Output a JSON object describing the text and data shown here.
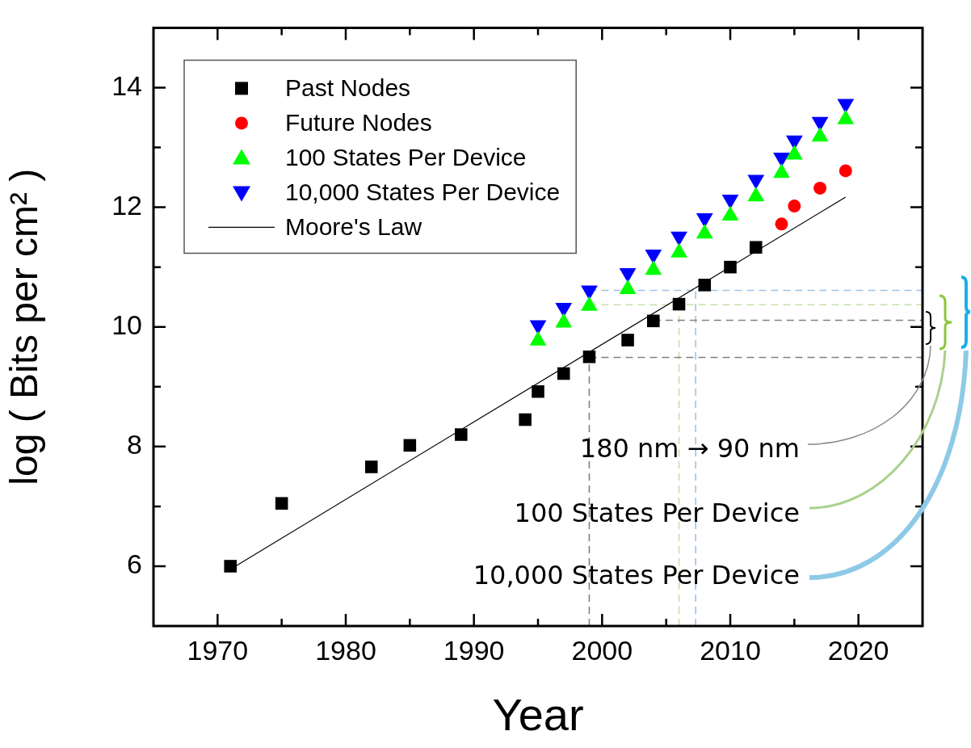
{
  "chart_data": {
    "type": "scatter",
    "xlabel": "Year",
    "ylabel": "log ( Bits per cm² )",
    "xlim": [
      1965,
      2025
    ],
    "ylim": [
      5,
      15
    ],
    "xticks": [
      1970,
      {
        "value": 1975,
        "label": null
      },
      1980,
      {
        "value": 1985,
        "label": null
      },
      1990,
      {
        "value": 1995,
        "label": null
      },
      2000,
      {
        "value": 2005,
        "label": null
      },
      2010,
      {
        "value": 2015,
        "label": null
      },
      2020
    ],
    "yticks": [
      6,
      {
        "value": 7,
        "label": null
      },
      8,
      {
        "value": 9,
        "label": null
      },
      10,
      {
        "value": 11,
        "label": null
      },
      12,
      {
        "value": 13,
        "label": null
      },
      14
    ],
    "grid": false,
    "legend": "top left",
    "annotations": [
      "180 nm → 90 nm",
      "100 States Per Device",
      "10,000 States Per Device"
    ],
    "series": [
      {
        "name": "Past Nodes",
        "type": "scatter",
        "marker": "square",
        "color": "#000000",
        "x": [
          1971,
          1975,
          1982,
          1985,
          1989,
          1994,
          1995,
          1997,
          1999,
          2002,
          2004,
          2006,
          2008,
          2010,
          2012
        ],
        "values": [
          6.0,
          7.05,
          7.66,
          8.02,
          8.2,
          8.45,
          8.92,
          9.22,
          9.5,
          9.78,
          10.1,
          10.38,
          10.7,
          11.0,
          11.33
        ]
      },
      {
        "name": "Future Nodes",
        "type": "scatter",
        "marker": "circle",
        "color": "#ff0000",
        "x": [
          2014,
          2015,
          2017,
          2019
        ],
        "values": [
          11.72,
          12.02,
          12.32,
          12.61
        ]
      },
      {
        "name": "100 States Per Device",
        "type": "scatter",
        "marker": "triangle",
        "color": "#00ff00",
        "x": [
          1995,
          1997,
          1999,
          2002,
          2004,
          2006,
          2008,
          2010,
          2012,
          2014,
          2015,
          2017,
          2019
        ],
        "values": [
          9.77,
          10.07,
          10.35,
          10.63,
          10.95,
          11.24,
          11.56,
          11.86,
          12.18,
          12.57,
          12.88,
          13.18,
          13.47
        ]
      },
      {
        "name": "10,000 States Per Device",
        "type": "scatter",
        "marker": "triangle-down",
        "color": "#0000ff",
        "x": [
          1995,
          1997,
          1999,
          2002,
          2004,
          2006,
          2008,
          2010,
          2012,
          2014,
          2015,
          2017,
          2019
        ],
        "values": [
          10.03,
          10.32,
          10.61,
          10.9,
          11.21,
          11.51,
          11.82,
          12.13,
          12.46,
          12.83,
          13.12,
          13.43,
          13.73
        ]
      },
      {
        "name": "Moore's Law",
        "type": "line",
        "marker": "none",
        "line_style": "solid",
        "color": "#000000",
        "x": [
          1971,
          2019
        ],
        "values": [
          5.95,
          12.17
        ]
      },
      {
        "type": "line",
        "marker": "none",
        "line_style": "dashed",
        "color": "#808080",
        "x": [
          1999,
          1999
        ],
        "values": [
          5,
          9.49
        ]
      },
      {
        "type": "line",
        "marker": "none",
        "line_style": "dashed",
        "color": "#808080",
        "x": [
          1999,
          2025
        ],
        "values": [
          9.49,
          9.49
        ]
      },
      {
        "type": "line",
        "marker": "none",
        "line_style": "dashed",
        "color": "#808080",
        "x": [
          2004,
          2025
        ],
        "values": [
          10.11,
          10.11
        ]
      },
      {
        "type": "line",
        "marker": "none",
        "line_style": "dashed",
        "color": "#c5e0a5",
        "x": [
          2006,
          2006
        ],
        "values": [
          5,
          10.37
        ]
      },
      {
        "type": "line",
        "marker": "none",
        "line_style": "dashed",
        "color": "#c5e0a5",
        "x": [
          1999,
          2025
        ],
        "values": [
          10.37,
          10.37
        ]
      },
      {
        "type": "line",
        "marker": "none",
        "line_style": "dashed",
        "color": "#9dc3e6",
        "x": [
          2007.3,
          2007.3
        ],
        "values": [
          5,
          10.61
        ]
      },
      {
        "type": "line",
        "marker": "none",
        "line_style": "dashed",
        "color": "#9dc3e6",
        "x": [
          1999,
          2025
        ],
        "values": [
          10.61,
          10.61
        ]
      }
    ]
  }
}
